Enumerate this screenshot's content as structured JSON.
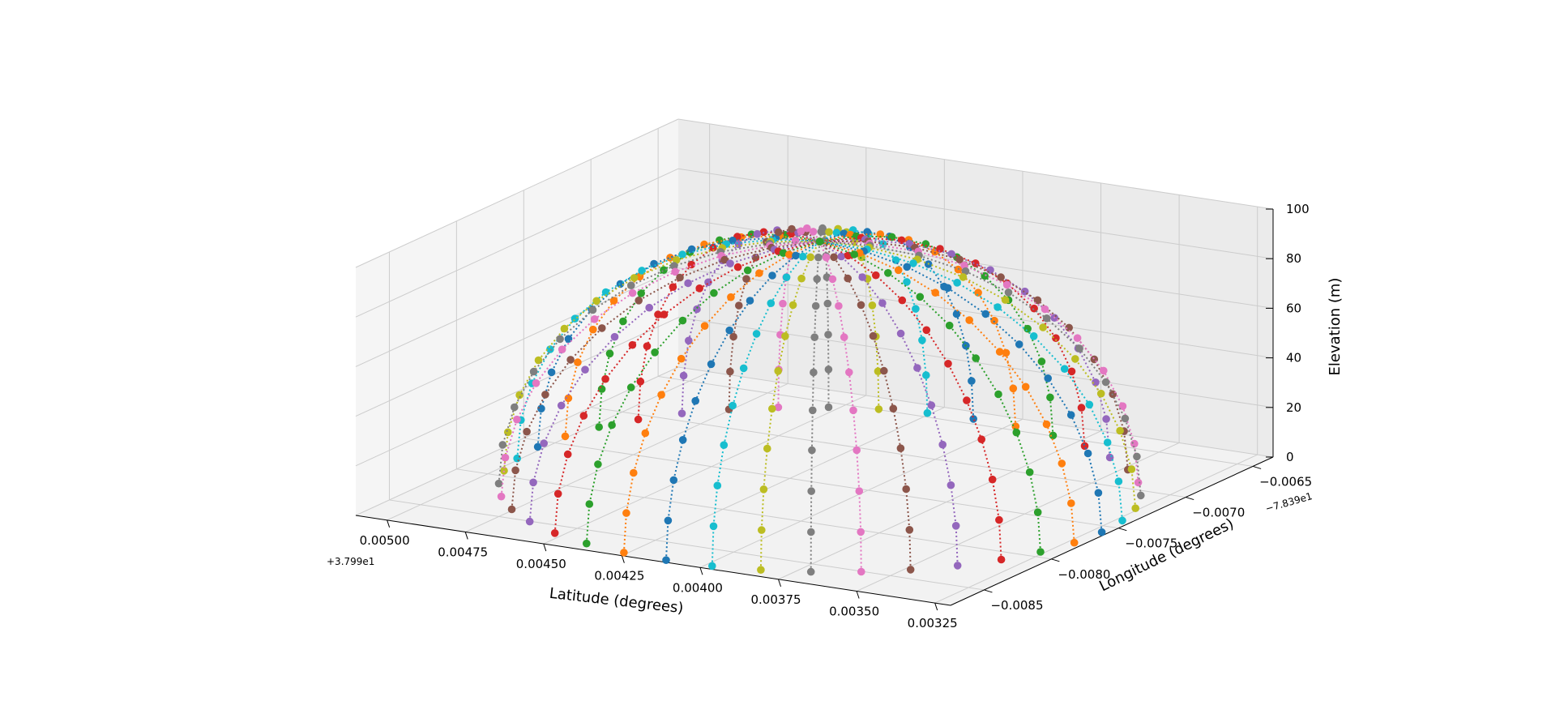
{
  "chart_data": {
    "type": "scatter",
    "projection": "3d",
    "title": "",
    "xlabel": "Latitude (degrees)",
    "ylabel": "Longitude (degrees)",
    "zlabel": "Elevation (m)",
    "x_offset_text": "+3.799e1",
    "y_offset_text": "−7.839e1",
    "x_ticks": [
      "0.00325",
      "0.00350",
      "0.00375",
      "0.00400",
      "0.00425",
      "0.00450",
      "0.00475",
      "0.00500"
    ],
    "y_ticks": [
      "−0.0085",
      "−0.0080",
      "−0.0075",
      "−0.0070",
      "−0.0065"
    ],
    "z_ticks": [
      "0",
      "20",
      "40",
      "60",
      "80",
      "100"
    ],
    "xlim": [
      37.9932,
      37.9951
    ],
    "ylim": [
      -78.39875,
      -78.39635
    ],
    "zlim": [
      0,
      100
    ],
    "grid": true,
    "line_style": "dotted",
    "marker": "circle",
    "palette": [
      "#1f77b4",
      "#ff7f0e",
      "#2ca02c",
      "#d62728",
      "#9467bd",
      "#8c564b",
      "#e377c2",
      "#7f7f7f",
      "#bcbd22",
      "#17becf"
    ],
    "dome": {
      "center": {
        "latitude": 37.99412,
        "longitude": -78.39758,
        "elevation": 0
      },
      "radius_m": 100,
      "n_meridians": 40,
      "n_points_per_meridian": 11,
      "elevation_angles_deg": [
        0,
        9,
        18,
        27,
        36,
        45,
        54,
        63,
        72,
        81,
        90
      ]
    }
  }
}
